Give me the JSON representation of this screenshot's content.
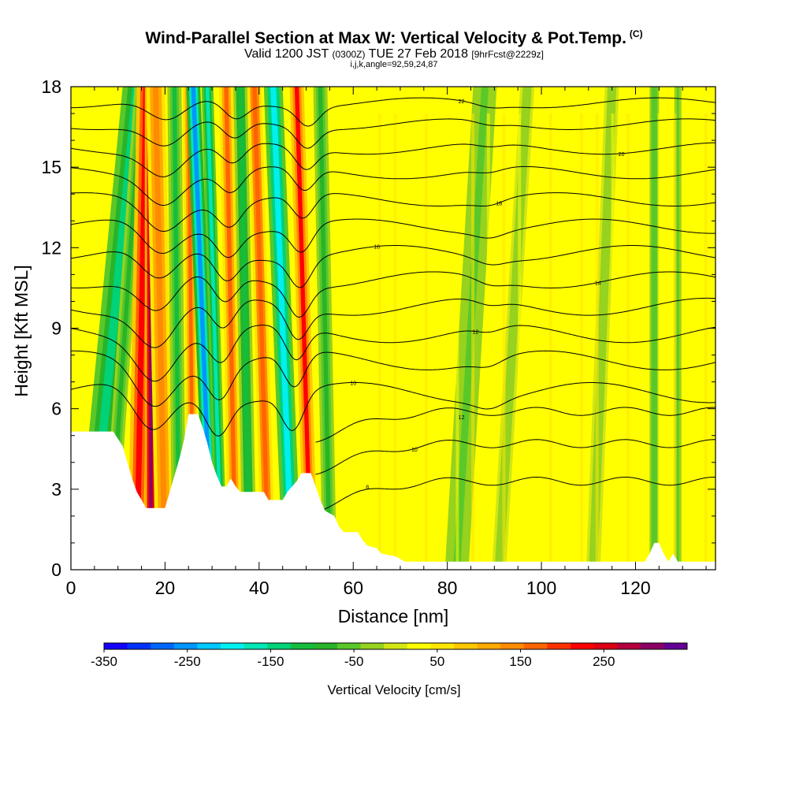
{
  "title": {
    "main": "Wind-Parallel Section at Max W: Vertical Velocity & Pot.Temp.",
    "tag": "(C)"
  },
  "subtitle": {
    "valid": "Valid 1200 JST",
    "utc": "(0300Z)",
    "date": "TUE 27 Feb 2018",
    "forecast": "[9hrFcst@2229z]",
    "indices": "i,j,k,angle=92,59,24,87"
  },
  "chart_data": {
    "type": "heatmap",
    "xlabel": "Distance [nm]",
    "ylabel": "Height [Kft MSL]",
    "xlim": [
      0,
      137
    ],
    "ylim": [
      0,
      18
    ],
    "x_ticks": [
      0,
      20,
      40,
      60,
      80,
      100,
      120
    ],
    "y_ticks": [
      0,
      3,
      6,
      9,
      12,
      15,
      18
    ],
    "colorbar": {
      "label": "Vertical Velocity [cm/s]",
      "range": [
        -350,
        350
      ],
      "tick_values": [
        -350,
        -250,
        -150,
        -50,
        50,
        150,
        250
      ],
      "tick_labels": [
        "-350",
        "-250",
        "-150",
        "-50",
        "50",
        "150",
        "250"
      ],
      "colors": [
        "#1400ff",
        "#0032ff",
        "#0066ff",
        "#0096ff",
        "#00c8ff",
        "#00f0f0",
        "#00e6b4",
        "#00d278",
        "#14be3c",
        "#28b428",
        "#5ac828",
        "#96d21e",
        "#d2e614",
        "#ffff00",
        "#ffe600",
        "#ffc800",
        "#ffaa00",
        "#ff8c00",
        "#ff6400",
        "#ff3200",
        "#ff0000",
        "#dc0014",
        "#b4003c",
        "#8c0064",
        "#640096"
      ]
    },
    "velocity_bands": [
      {
        "x": 4,
        "x_top": 14,
        "width": 6,
        "w": -140
      },
      {
        "x": 8,
        "x_top": 15,
        "width": 3,
        "w": -80
      },
      {
        "x": 14,
        "x_top": 16,
        "width": 4,
        "w": 220
      },
      {
        "x": 17,
        "x_top": 17,
        "width": 2.6,
        "w": 320
      },
      {
        "x": 20,
        "x_top": 18,
        "width": 4,
        "w": 150
      },
      {
        "x": 23,
        "x_top": 22,
        "width": 3,
        "w": -100
      },
      {
        "x": 26,
        "x_top": 25,
        "width": 2.5,
        "w": 160
      },
      {
        "x": 30,
        "x_top": 26,
        "width": 3,
        "w": -240
      },
      {
        "x": 32,
        "x_top": 29,
        "width": 2.5,
        "w": -160
      },
      {
        "x": 35,
        "x_top": 33,
        "width": 3,
        "w": 170
      },
      {
        "x": 38,
        "x_top": 36,
        "width": 3,
        "w": -120
      },
      {
        "x": 42,
        "x_top": 39,
        "width": 3,
        "w": 180
      },
      {
        "x": 47,
        "x_top": 43,
        "width": 4,
        "w": -200
      },
      {
        "x": 51,
        "x_top": 48,
        "width": 3,
        "w": 210
      },
      {
        "x": 55,
        "x_top": 53,
        "width": 3,
        "w": -80
      },
      {
        "x": 82,
        "x_top": 88,
        "width": 5,
        "w": -60
      },
      {
        "x": 91,
        "x_top": 97,
        "width": 3,
        "w": -40
      },
      {
        "x": 111,
        "x_top": 115,
        "width": 3,
        "w": -30
      },
      {
        "x": 124,
        "x_top": 124,
        "width": 2,
        "w": -70
      },
      {
        "x": 129,
        "x_top": 129,
        "width": 1.5,
        "w": -50
      }
    ],
    "terrain_kft": [
      [
        0,
        5.15
      ],
      [
        9,
        5.15
      ],
      [
        11,
        4.6
      ],
      [
        12,
        4.0
      ],
      [
        13,
        3.4
      ],
      [
        14,
        2.9
      ],
      [
        15,
        2.6
      ],
      [
        16,
        2.3
      ],
      [
        20,
        2.3
      ],
      [
        21,
        2.9
      ],
      [
        22,
        3.5
      ],
      [
        23,
        4.1
      ],
      [
        24,
        4.8
      ],
      [
        25,
        5.8
      ],
      [
        27,
        5.8
      ],
      [
        28,
        5.3
      ],
      [
        29,
        4.7
      ],
      [
        30,
        4.0
      ],
      [
        31,
        3.5
      ],
      [
        32,
        3.1
      ],
      [
        33,
        3.1
      ],
      [
        34,
        3.4
      ],
      [
        35,
        3.1
      ],
      [
        36,
        2.9
      ],
      [
        41,
        2.9
      ],
      [
        42,
        2.6
      ],
      [
        45,
        2.6
      ],
      [
        46,
        2.9
      ],
      [
        47,
        3.1
      ],
      [
        48,
        3.3
      ],
      [
        49,
        3.6
      ],
      [
        51,
        3.6
      ],
      [
        52,
        3.1
      ],
      [
        53,
        2.6
      ],
      [
        54,
        2.2
      ],
      [
        56,
        2.0
      ],
      [
        57,
        1.6
      ],
      [
        58,
        1.4
      ],
      [
        61,
        1.4
      ],
      [
        62,
        1.1
      ],
      [
        63,
        0.9
      ],
      [
        65,
        0.8
      ],
      [
        66,
        0.6
      ],
      [
        69,
        0.5
      ],
      [
        71,
        0.3
      ],
      [
        122,
        0.3
      ],
      [
        123,
        0.6
      ],
      [
        124,
        1.0
      ],
      [
        125,
        1.0
      ],
      [
        126,
        0.6
      ],
      [
        127,
        0.3
      ],
      [
        128,
        0.6
      ],
      [
        129,
        0.3
      ],
      [
        137,
        0.3
      ]
    ],
    "theta_contours": [
      {
        "z0": 6.6,
        "label": "10"
      },
      {
        "z0": 7.8,
        "label": ""
      },
      {
        "z0": 8.8,
        "label": "12"
      },
      {
        "z0": 9.8,
        "label": ""
      },
      {
        "z0": 10.8,
        "label": "14"
      },
      {
        "z0": 11.8,
        "label": "16"
      },
      {
        "z0": 12.8,
        "label": ""
      },
      {
        "z0": 13.8,
        "label": "18"
      },
      {
        "z0": 14.8,
        "label": ""
      },
      {
        "z0": 15.7,
        "label": "20"
      },
      {
        "z0": 16.6,
        "label": ""
      },
      {
        "z0": 17.4,
        "label": "22"
      }
    ],
    "lower_contours": [
      {
        "z0": 2.7,
        "label": "8"
      },
      {
        "z0": 4.1,
        "label": "10"
      },
      {
        "z0": 5.3,
        "label": "12"
      }
    ]
  }
}
